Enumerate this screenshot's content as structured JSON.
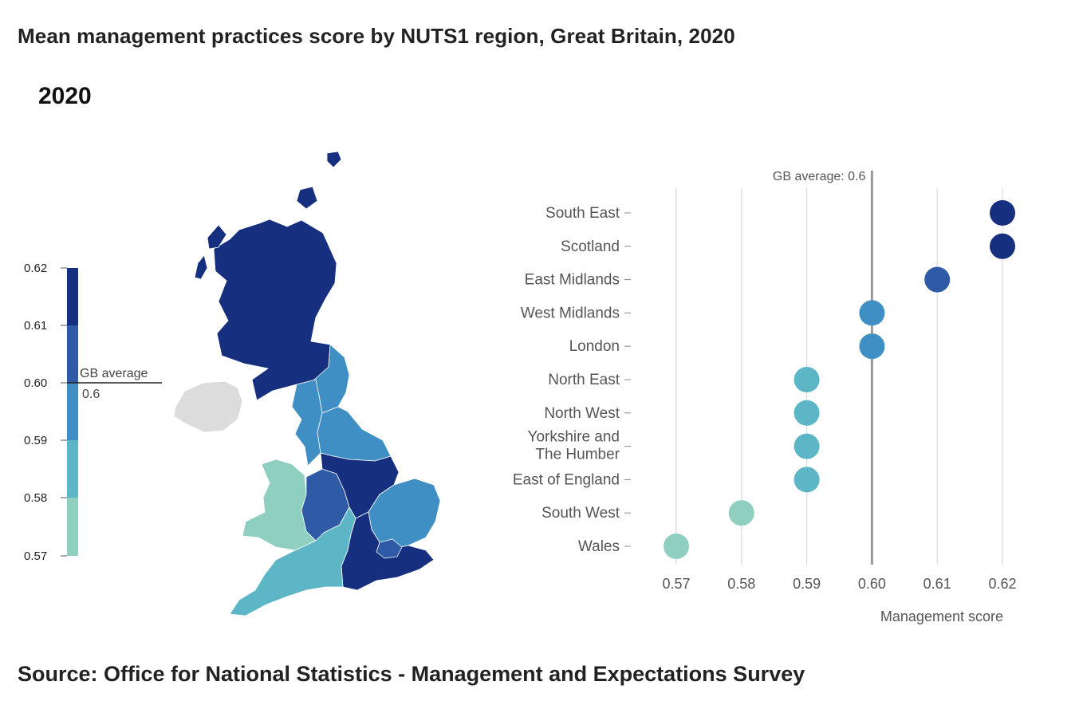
{
  "header": {
    "title": "Mean management practices score by NUTS1 region, Great Britain, 2020",
    "year_label": "2020"
  },
  "footer": {
    "source": "Source: Office for National Statistics - Management and Expectations Survey"
  },
  "colors": {
    "band_057_058": "#8ecfc0",
    "band_058_059": "#5db6c5",
    "band_059_060": "#3f8fc4",
    "band_060_061": "#2f5aa6",
    "band_061_062": "#16307f",
    "no_data": "#dcdcdc",
    "gridline": "#d9d9d9",
    "average_line": "#9a9a9a",
    "axis_text": "#555555"
  },
  "legend": {
    "ticks": [
      "0.62",
      "0.61",
      "0.60",
      "0.59",
      "0.58",
      "0.57"
    ],
    "average_label": "GB average",
    "average_value": "0.6"
  },
  "chart_data": {
    "type": "scatter",
    "orientation": "horizontal-dot-plot",
    "categories": [
      "South East",
      "Scotland",
      "East Midlands",
      "West Midlands",
      "London",
      "North East",
      "North West",
      "Yorkshire and The Humber",
      "East of England",
      "South West",
      "Wales"
    ],
    "category_lines": [
      [
        "South East"
      ],
      [
        "Scotland"
      ],
      [
        "East Midlands"
      ],
      [
        "West Midlands"
      ],
      [
        "London"
      ],
      [
        "North East"
      ],
      [
        "North West"
      ],
      [
        "Yorkshire and",
        "The Humber"
      ],
      [
        "East of England"
      ],
      [
        "South West"
      ],
      [
        "Wales"
      ]
    ],
    "values": [
      0.62,
      0.62,
      0.61,
      0.6,
      0.6,
      0.59,
      0.59,
      0.59,
      0.59,
      0.58,
      0.57
    ],
    "x_ticks": [
      "0.57",
      "0.58",
      "0.59",
      "0.60",
      "0.61",
      "0.62"
    ],
    "xlim": [
      0.57,
      0.62
    ],
    "xlabel": "Management score",
    "reference_line": {
      "value": 0.6,
      "label": "GB average: 0.6"
    },
    "grid": true
  }
}
